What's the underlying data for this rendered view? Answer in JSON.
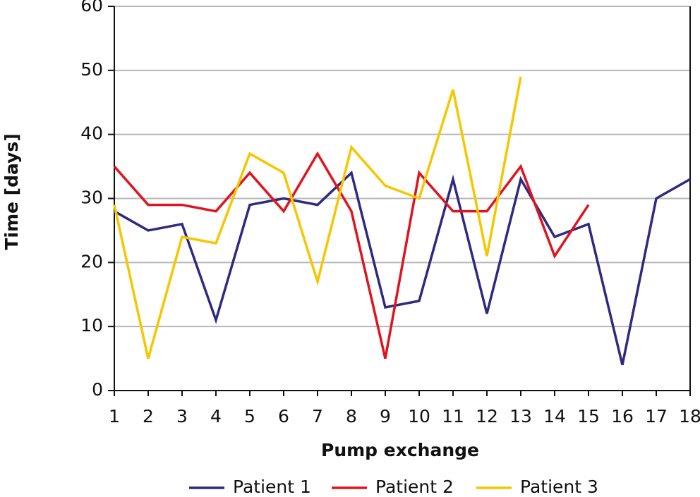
{
  "chart_data": {
    "type": "line",
    "x_label": "Pump exchange",
    "y_label": "Time [days]",
    "x": [
      1,
      2,
      3,
      4,
      5,
      6,
      7,
      8,
      9,
      10,
      11,
      12,
      13,
      14,
      15,
      16,
      17,
      18
    ],
    "series": [
      {
        "name": "Patient 1",
        "color": "#2e2a80",
        "values": [
          28,
          25,
          26,
          11,
          29,
          30,
          29,
          34,
          13,
          14,
          33,
          12,
          33,
          24,
          26,
          4,
          30,
          33
        ]
      },
      {
        "name": "Patient 2",
        "color": "#e0141e",
        "values": [
          35,
          29,
          29,
          28,
          34,
          28,
          37,
          28,
          5,
          34,
          28,
          28,
          35,
          21,
          29,
          null,
          null,
          null
        ]
      },
      {
        "name": "Patient 3",
        "color": "#f5c700",
        "values": [
          29,
          5,
          24,
          23,
          37,
          34,
          17,
          38,
          32,
          30,
          47,
          21,
          49,
          null,
          null,
          null,
          null,
          null
        ]
      }
    ],
    "xlim": [
      1,
      18
    ],
    "xticks": [
      1,
      2,
      3,
      4,
      5,
      6,
      7,
      8,
      9,
      10,
      11,
      12,
      13,
      14,
      15,
      16,
      17,
      18
    ],
    "ylim": [
      0,
      60
    ],
    "yticks": [
      0,
      10,
      20,
      30,
      40,
      50,
      60
    ],
    "grid": true,
    "legend": "bottom"
  }
}
